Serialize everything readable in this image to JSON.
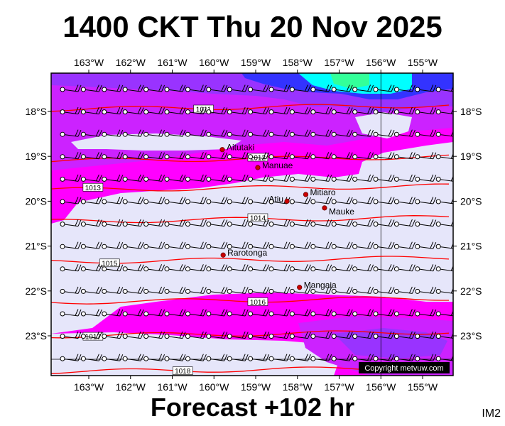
{
  "header": {
    "title": "1400 CKT Thu 20 Nov 2025"
  },
  "footer": {
    "forecast": "Forecast +102 hr",
    "tag": "IM2"
  },
  "map": {
    "lon_ticks": [
      "163°W",
      "162°W",
      "161°W",
      "160°W",
      "159°W",
      "158°W",
      "157°W",
      "156°W",
      "155°W"
    ],
    "lat_ticks": [
      "18°S",
      "19°S",
      "20°S",
      "21°S",
      "22°S",
      "23°S"
    ],
    "places": [
      {
        "name": "Aitutaki",
        "lon": -159.8,
        "lat": -18.85
      },
      {
        "name": "Manuae",
        "lon": -158.95,
        "lat": -19.25
      },
      {
        "name": "Mitiaro",
        "lon": -157.8,
        "lat": -19.85
      },
      {
        "name": "Atiu",
        "lon": -158.25,
        "lat": -20.0
      },
      {
        "name": "Mauke",
        "lon": -157.35,
        "lat": -20.15
      },
      {
        "name": "Rarotonga",
        "lon": -159.78,
        "lat": -21.2
      },
      {
        "name": "Mangaia",
        "lon": -157.95,
        "lat": -21.92
      }
    ],
    "isobars": [
      {
        "label": "1011",
        "lat": -17.95
      },
      {
        "label": "1012",
        "lat": -19.1
      },
      {
        "label": "1013",
        "lat": -19.75
      },
      {
        "label": "1014",
        "lat": -20.45
      },
      {
        "label": "1015",
        "lat": -21.35
      },
      {
        "label": "1016",
        "lat": -22.25
      },
      {
        "label": "1017",
        "lat": -23.0
      },
      {
        "label": "1018",
        "lat": -23.8
      }
    ],
    "copyright": "Copyright metvuw.com",
    "colors": {
      "calm": "#e6e6fa",
      "magenta": "#ff00ff",
      "violet": "#cc22ff",
      "purple": "#9933ff",
      "blue": "#3333ff",
      "cyan": "#00ffff",
      "green": "#33ff99",
      "isobar": "#ff0000"
    }
  }
}
